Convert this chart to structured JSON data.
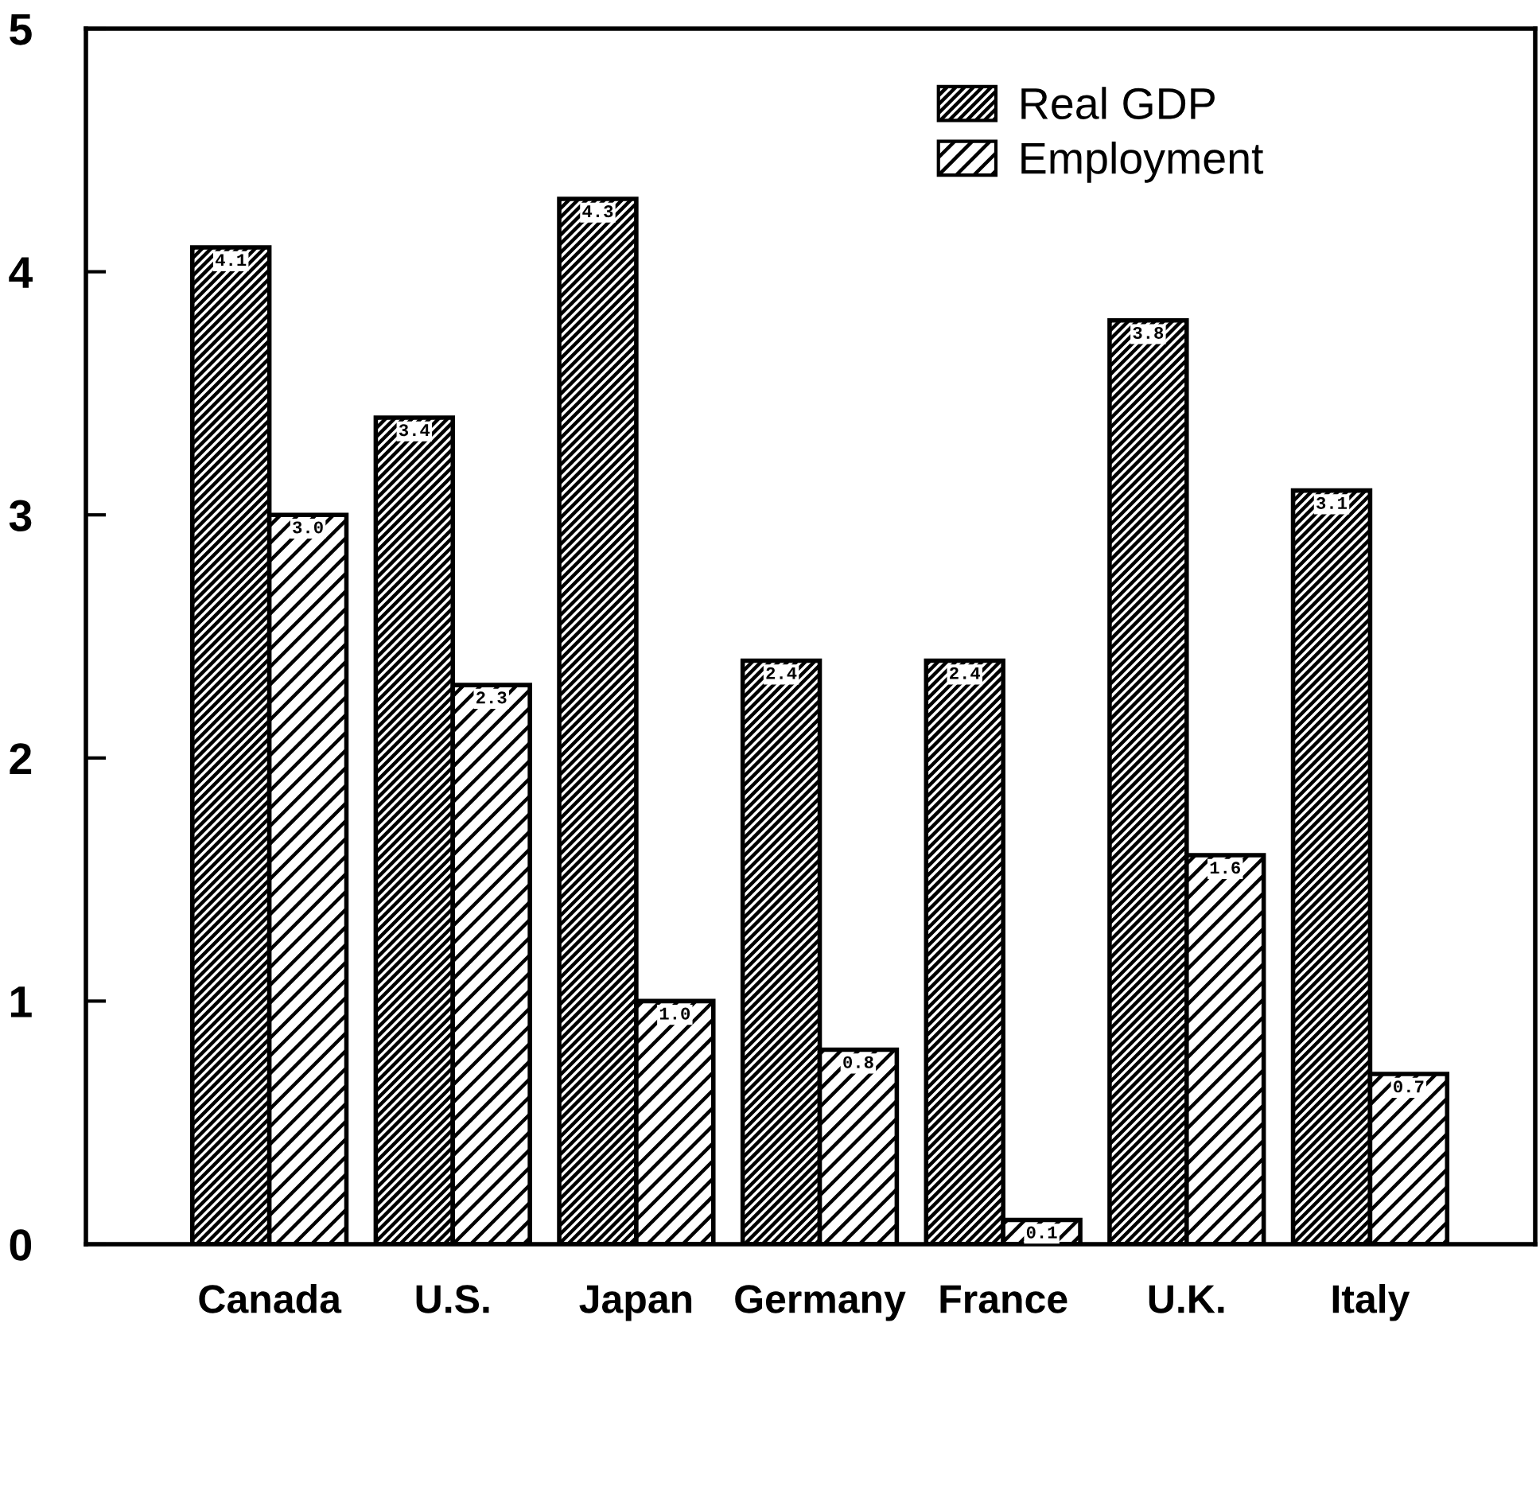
{
  "chart_data": {
    "type": "bar",
    "categories": [
      "Canada",
      "U.S.",
      "Japan",
      "Germany",
      "France",
      "U.K.",
      "Italy"
    ],
    "series": [
      {
        "name": "Real GDP",
        "color": "#000000",
        "values": [
          4.1,
          3.4,
          4.3,
          2.4,
          2.4,
          3.8,
          3.1
        ],
        "value_labels": [
          "4.1",
          "3.4",
          "4.3",
          "2.4",
          "2.4",
          "3.8",
          "3.1"
        ]
      },
      {
        "name": "Employment",
        "color": "#000000",
        "values": [
          3.0,
          2.3,
          1.0,
          0.8,
          0.1,
          1.6,
          0.7
        ],
        "value_labels": [
          "3.0",
          "2.3",
          "1.0",
          "0.8",
          "0.1",
          "1.6",
          "0.7"
        ]
      }
    ],
    "ylim": [
      0,
      5
    ],
    "yticks": [
      0,
      1,
      2,
      3,
      4,
      5
    ],
    "grid": false,
    "legend": "top right"
  }
}
